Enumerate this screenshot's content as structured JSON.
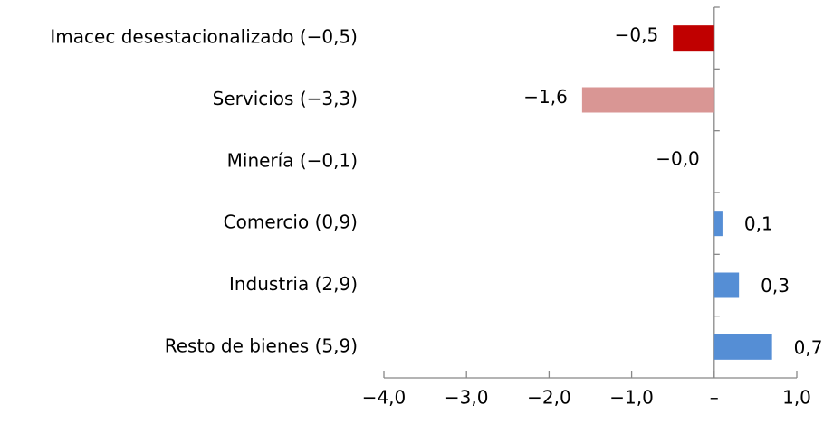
{
  "chart_data": {
    "type": "barh",
    "categories": [
      "Imacec desestacionalizado (−0,5)",
      "Servicios (−3,3)",
      "Minería (−0,1)",
      "Comercio (0,9)",
      "Industria (2,9)",
      "Resto de bienes (5,9)"
    ],
    "values": [
      -0.5,
      -1.6,
      0,
      0.1,
      0.3,
      0.7
    ],
    "value_labels": [
      "−0,5",
      "−1,6",
      "−0,0",
      "0,1",
      "0,3",
      "0,7"
    ],
    "colors": [
      "#c00000",
      "#d99694",
      "#558ed5",
      "#558ed5",
      "#558ed5",
      "#558ed5"
    ],
    "xlim": [
      -4,
      1
    ],
    "xticks": [
      {
        "value": -4,
        "label": "−4,0"
      },
      {
        "value": -3,
        "label": "−3,0"
      },
      {
        "value": -2,
        "label": "−2,0"
      },
      {
        "value": -1,
        "label": "−1,0"
      },
      {
        "value": 0,
        "label": "–"
      },
      {
        "value": 1,
        "label": "1,0"
      }
    ]
  }
}
